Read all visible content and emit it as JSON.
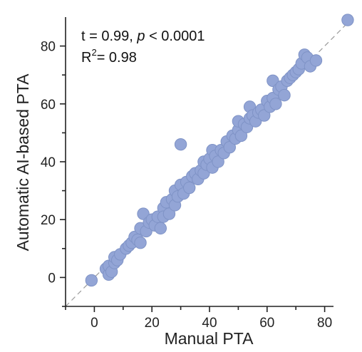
{
  "chart_data": {
    "type": "scatter",
    "title": "",
    "xlabel": "Manual PTA",
    "ylabel": "Automatic AI-based PTA",
    "xlim": [
      -10,
      90
    ],
    "ylim": [
      -10,
      90
    ],
    "xticks": [
      0,
      20,
      40,
      60,
      80
    ],
    "yticks": [
      0,
      20,
      40,
      60,
      80
    ],
    "grid": false,
    "reference_line": "identity (y = x), dashed gray",
    "annotations": {
      "stat_line_prefix": "t = 0.99, ",
      "stat_p": "p",
      "stat_line_suffix": " < 0.0001",
      "r_label": "R",
      "r_sup": "2",
      "r_value": "= 0.98"
    },
    "marker_color": "#93a5d6",
    "points": [
      [
        -1,
        -1
      ],
      [
        4,
        3
      ],
      [
        5,
        1
      ],
      [
        5,
        4
      ],
      [
        6,
        2
      ],
      [
        7,
        5
      ],
      [
        7,
        7
      ],
      [
        8,
        6
      ],
      [
        9,
        8
      ],
      [
        11,
        10
      ],
      [
        12,
        11
      ],
      [
        13,
        12
      ],
      [
        14,
        14
      ],
      [
        15,
        13
      ],
      [
        16,
        12
      ],
      [
        16,
        17
      ],
      [
        17,
        22
      ],
      [
        18,
        16
      ],
      [
        19,
        19
      ],
      [
        20,
        20
      ],
      [
        21,
        18
      ],
      [
        22,
        21
      ],
      [
        23,
        17
      ],
      [
        24,
        24
      ],
      [
        24,
        21
      ],
      [
        25,
        26
      ],
      [
        26,
        22
      ],
      [
        27,
        27
      ],
      [
        28,
        25
      ],
      [
        28,
        30
      ],
      [
        29,
        28
      ],
      [
        30,
        32
      ],
      [
        31,
        29
      ],
      [
        30,
        46
      ],
      [
        32,
        33
      ],
      [
        33,
        31
      ],
      [
        34,
        35
      ],
      [
        35,
        36
      ],
      [
        36,
        34
      ],
      [
        37,
        37
      ],
      [
        38,
        36
      ],
      [
        38,
        40
      ],
      [
        39,
        39
      ],
      [
        40,
        41
      ],
      [
        41,
        38
      ],
      [
        41,
        44
      ],
      [
        42,
        42
      ],
      [
        43,
        40
      ],
      [
        44,
        44
      ],
      [
        45,
        43
      ],
      [
        46,
        47
      ],
      [
        47,
        45
      ],
      [
        48,
        49
      ],
      [
        49,
        48
      ],
      [
        50,
        51
      ],
      [
        50,
        54
      ],
      [
        51,
        49
      ],
      [
        52,
        53
      ],
      [
        53,
        52
      ],
      [
        54,
        59
      ],
      [
        54,
        55
      ],
      [
        55,
        56
      ],
      [
        56,
        54
      ],
      [
        57,
        57
      ],
      [
        58,
        58
      ],
      [
        59,
        56
      ],
      [
        60,
        61
      ],
      [
        61,
        59
      ],
      [
        62,
        62
      ],
      [
        62,
        68
      ],
      [
        63,
        60
      ],
      [
        64,
        65
      ],
      [
        65,
        66
      ],
      [
        66,
        63
      ],
      [
        67,
        68
      ],
      [
        68,
        69
      ],
      [
        69,
        70
      ],
      [
        70,
        71
      ],
      [
        71,
        72
      ],
      [
        72,
        74
      ],
      [
        73,
        77
      ],
      [
        74,
        76
      ],
      [
        75,
        73
      ],
      [
        77,
        75
      ],
      [
        88,
        89
      ]
    ]
  }
}
